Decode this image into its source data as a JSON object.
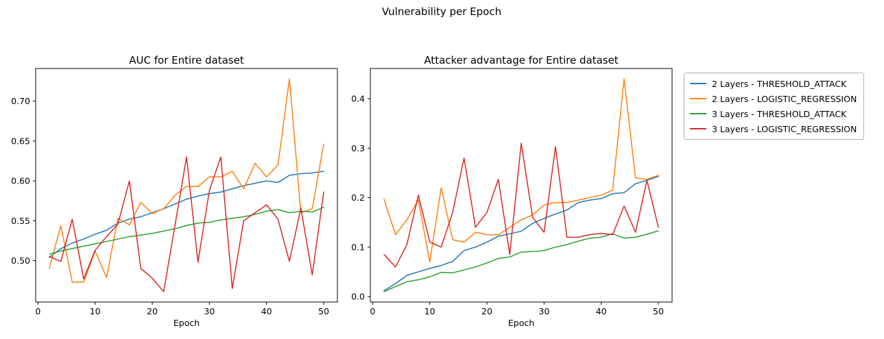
{
  "figure_title": "Vulnerability per Epoch",
  "legend": {
    "position": "upper right, outside axes"
  },
  "chart_data": [
    {
      "type": "line",
      "title": "AUC for Entire dataset",
      "xlabel": "Epoch",
      "ylabel": "",
      "grid": false,
      "xlim": [
        -0.4,
        52.4
      ],
      "ylim": [
        0.448,
        0.741
      ],
      "xticks": {
        "values": [
          0,
          10,
          20,
          30,
          40,
          50
        ],
        "labels": [
          "0",
          "10",
          "20",
          "30",
          "40",
          "50"
        ]
      },
      "yticks": {
        "values": [
          0.5,
          0.55,
          0.6,
          0.65,
          0.7
        ],
        "labels": [
          "0.50",
          "0.55",
          "0.60",
          "0.65",
          "0.70"
        ]
      },
      "x": [
        2,
        4,
        6,
        8,
        10,
        12,
        14,
        16,
        18,
        20,
        22,
        24,
        26,
        28,
        30,
        32,
        34,
        36,
        38,
        40,
        42,
        44,
        46,
        48,
        50
      ],
      "series": [
        {
          "name": "2 Layers - THRESHOLD_ATTACK",
          "color": "#1f77b4",
          "values": [
            0.504,
            0.515,
            0.522,
            0.527,
            0.533,
            0.538,
            0.547,
            0.552,
            0.555,
            0.56,
            0.565,
            0.571,
            0.577,
            0.581,
            0.584,
            0.586,
            0.59,
            0.594,
            0.597,
            0.6,
            0.598,
            0.607,
            0.609,
            0.61,
            0.612
          ]
        },
        {
          "name": "2 Layers - LOGISTIC_REGRESSION",
          "color": "#ff7f0e",
          "values": [
            0.49,
            0.544,
            0.473,
            0.473,
            0.512,
            0.479,
            0.553,
            0.545,
            0.573,
            0.559,
            0.565,
            0.582,
            0.593,
            0.593,
            0.605,
            0.605,
            0.612,
            0.59,
            0.622,
            0.605,
            0.62,
            0.728,
            0.56,
            0.565,
            0.646
          ]
        },
        {
          "name": "3 Layers - THRESHOLD_ATTACK",
          "color": "#2ca02c",
          "values": [
            0.508,
            0.512,
            0.515,
            0.518,
            0.521,
            0.524,
            0.527,
            0.53,
            0.532,
            0.534,
            0.537,
            0.54,
            0.544,
            0.547,
            0.548,
            0.551,
            0.553,
            0.555,
            0.558,
            0.562,
            0.564,
            0.56,
            0.562,
            0.561,
            0.567
          ]
        },
        {
          "name": "3 Layers - LOGISTIC_REGRESSION",
          "color": "#d62728",
          "values": [
            0.505,
            0.499,
            0.552,
            0.477,
            0.513,
            0.53,
            0.546,
            0.6,
            0.49,
            0.478,
            0.461,
            0.545,
            0.63,
            0.498,
            0.588,
            0.63,
            0.465,
            0.55,
            0.56,
            0.57,
            0.552,
            0.499,
            0.566,
            0.482,
            0.586
          ]
        }
      ]
    },
    {
      "type": "line",
      "title": "Attacker advantage for Entire dataset",
      "xlabel": "Epoch",
      "ylabel": "",
      "grid": false,
      "xlim": [
        -0.4,
        52.4
      ],
      "ylim": [
        -0.011,
        0.461
      ],
      "xticks": {
        "values": [
          0,
          10,
          20,
          30,
          40,
          50
        ],
        "labels": [
          "0",
          "10",
          "20",
          "30",
          "40",
          "50"
        ]
      },
      "yticks": {
        "values": [
          0.0,
          0.1,
          0.2,
          0.3,
          0.4
        ],
        "labels": [
          "0.0",
          "0.1",
          "0.2",
          "0.3",
          "0.4"
        ]
      },
      "x": [
        2,
        4,
        6,
        8,
        10,
        12,
        14,
        16,
        18,
        20,
        22,
        24,
        26,
        28,
        30,
        32,
        34,
        36,
        38,
        40,
        42,
        44,
        46,
        48,
        50
      ],
      "series": [
        {
          "name": "2 Layers - THRESHOLD_ATTACK",
          "color": "#1f77b4",
          "values": [
            0.012,
            0.026,
            0.043,
            0.05,
            0.057,
            0.063,
            0.071,
            0.093,
            0.1,
            0.11,
            0.122,
            0.127,
            0.132,
            0.148,
            0.158,
            0.167,
            0.175,
            0.19,
            0.195,
            0.198,
            0.208,
            0.21,
            0.228,
            0.235,
            0.243
          ]
        },
        {
          "name": "2 Layers - LOGISTIC_REGRESSION",
          "color": "#ff7f0e",
          "values": [
            0.197,
            0.125,
            0.155,
            0.195,
            0.07,
            0.22,
            0.115,
            0.11,
            0.13,
            0.125,
            0.125,
            0.14,
            0.155,
            0.165,
            0.185,
            0.19,
            0.19,
            0.195,
            0.2,
            0.205,
            0.215,
            0.44,
            0.24,
            0.237,
            0.245
          ]
        },
        {
          "name": "3 Layers - THRESHOLD_ATTACK",
          "color": "#2ca02c",
          "values": [
            0.01,
            0.02,
            0.03,
            0.034,
            0.04,
            0.049,
            0.048,
            0.054,
            0.06,
            0.068,
            0.077,
            0.08,
            0.09,
            0.091,
            0.093,
            0.1,
            0.105,
            0.112,
            0.118,
            0.12,
            0.127,
            0.118,
            0.12,
            0.126,
            0.133
          ]
        },
        {
          "name": "3 Layers - LOGISTIC_REGRESSION",
          "color": "#d62728",
          "values": [
            0.085,
            0.06,
            0.105,
            0.205,
            0.11,
            0.1,
            0.17,
            0.28,
            0.14,
            0.17,
            0.237,
            0.085,
            0.31,
            0.16,
            0.13,
            0.303,
            0.12,
            0.12,
            0.125,
            0.128,
            0.125,
            0.183,
            0.13,
            0.235,
            0.14
          ]
        }
      ]
    }
  ]
}
